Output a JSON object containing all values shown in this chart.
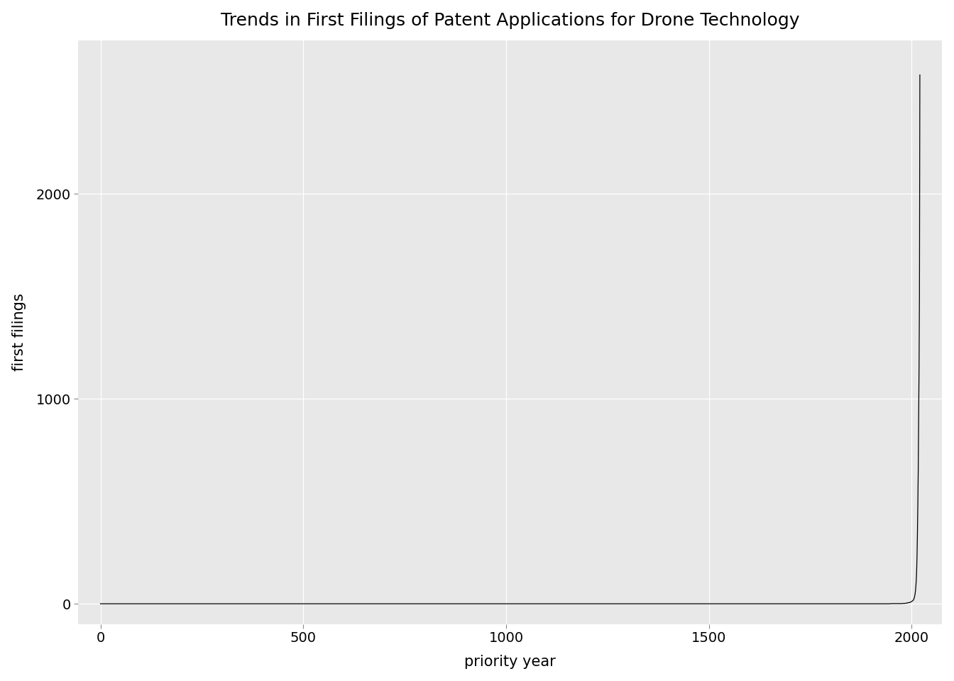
{
  "title": "Trends in First Filings of Patent Applications for Drone Technology",
  "xlabel": "priority year",
  "ylabel": "first filings",
  "bg_color": "#E8E8E8",
  "line_color": "#000000",
  "grid_color": "#FFFFFF",
  "xlim": [
    -55,
    2075
  ],
  "ylim": [
    -100,
    2750
  ],
  "xticks": [
    0,
    500,
    1000,
    1500,
    2000
  ],
  "yticks": [
    0,
    1000,
    2000
  ],
  "years": [
    0,
    50,
    100,
    150,
    200,
    250,
    300,
    350,
    400,
    450,
    500,
    550,
    600,
    650,
    700,
    750,
    800,
    850,
    900,
    950,
    1000,
    1050,
    1100,
    1150,
    1200,
    1250,
    1300,
    1350,
    1400,
    1450,
    1500,
    1550,
    1600,
    1650,
    1700,
    1750,
    1800,
    1820,
    1840,
    1860,
    1870,
    1880,
    1890,
    1895,
    1900,
    1905,
    1910,
    1915,
    1920,
    1925,
    1930,
    1935,
    1940,
    1945,
    1950,
    1955,
    1960,
    1965,
    1970,
    1975,
    1980,
    1981,
    1982,
    1983,
    1984,
    1985,
    1986,
    1987,
    1988,
    1989,
    1990,
    1991,
    1992,
    1993,
    1994,
    1995,
    1996,
    1997,
    1998,
    1999,
    2000,
    2001,
    2002,
    2003,
    2004,
    2005,
    2006,
    2007,
    2008,
    2009,
    2010,
    2011,
    2012,
    2013,
    2014,
    2015,
    2016,
    2017,
    2018,
    2019,
    2020
  ],
  "values": [
    0,
    0,
    0,
    0,
    0,
    0,
    0,
    0,
    0,
    0,
    0,
    0,
    0,
    0,
    0,
    0,
    0,
    0,
    0,
    0,
    0,
    0,
    0,
    0,
    0,
    0,
    0,
    0,
    0,
    0,
    0,
    0,
    0,
    0,
    0,
    0,
    0,
    0,
    0,
    0,
    0,
    0,
    0,
    0,
    0,
    0,
    0,
    0,
    0,
    0,
    0,
    0,
    0,
    0,
    1,
    1,
    1,
    1,
    1,
    1,
    2,
    2,
    2,
    2,
    2,
    3,
    3,
    3,
    3,
    4,
    5,
    5,
    5,
    6,
    6,
    7,
    7,
    8,
    9,
    10,
    12,
    13,
    14,
    16,
    18,
    22,
    28,
    35,
    45,
    60,
    80,
    110,
    155,
    230,
    340,
    480,
    650,
    900,
    1150,
    1500,
    2580
  ],
  "title_fontsize": 18,
  "axis_label_fontsize": 15,
  "tick_label_fontsize": 14
}
